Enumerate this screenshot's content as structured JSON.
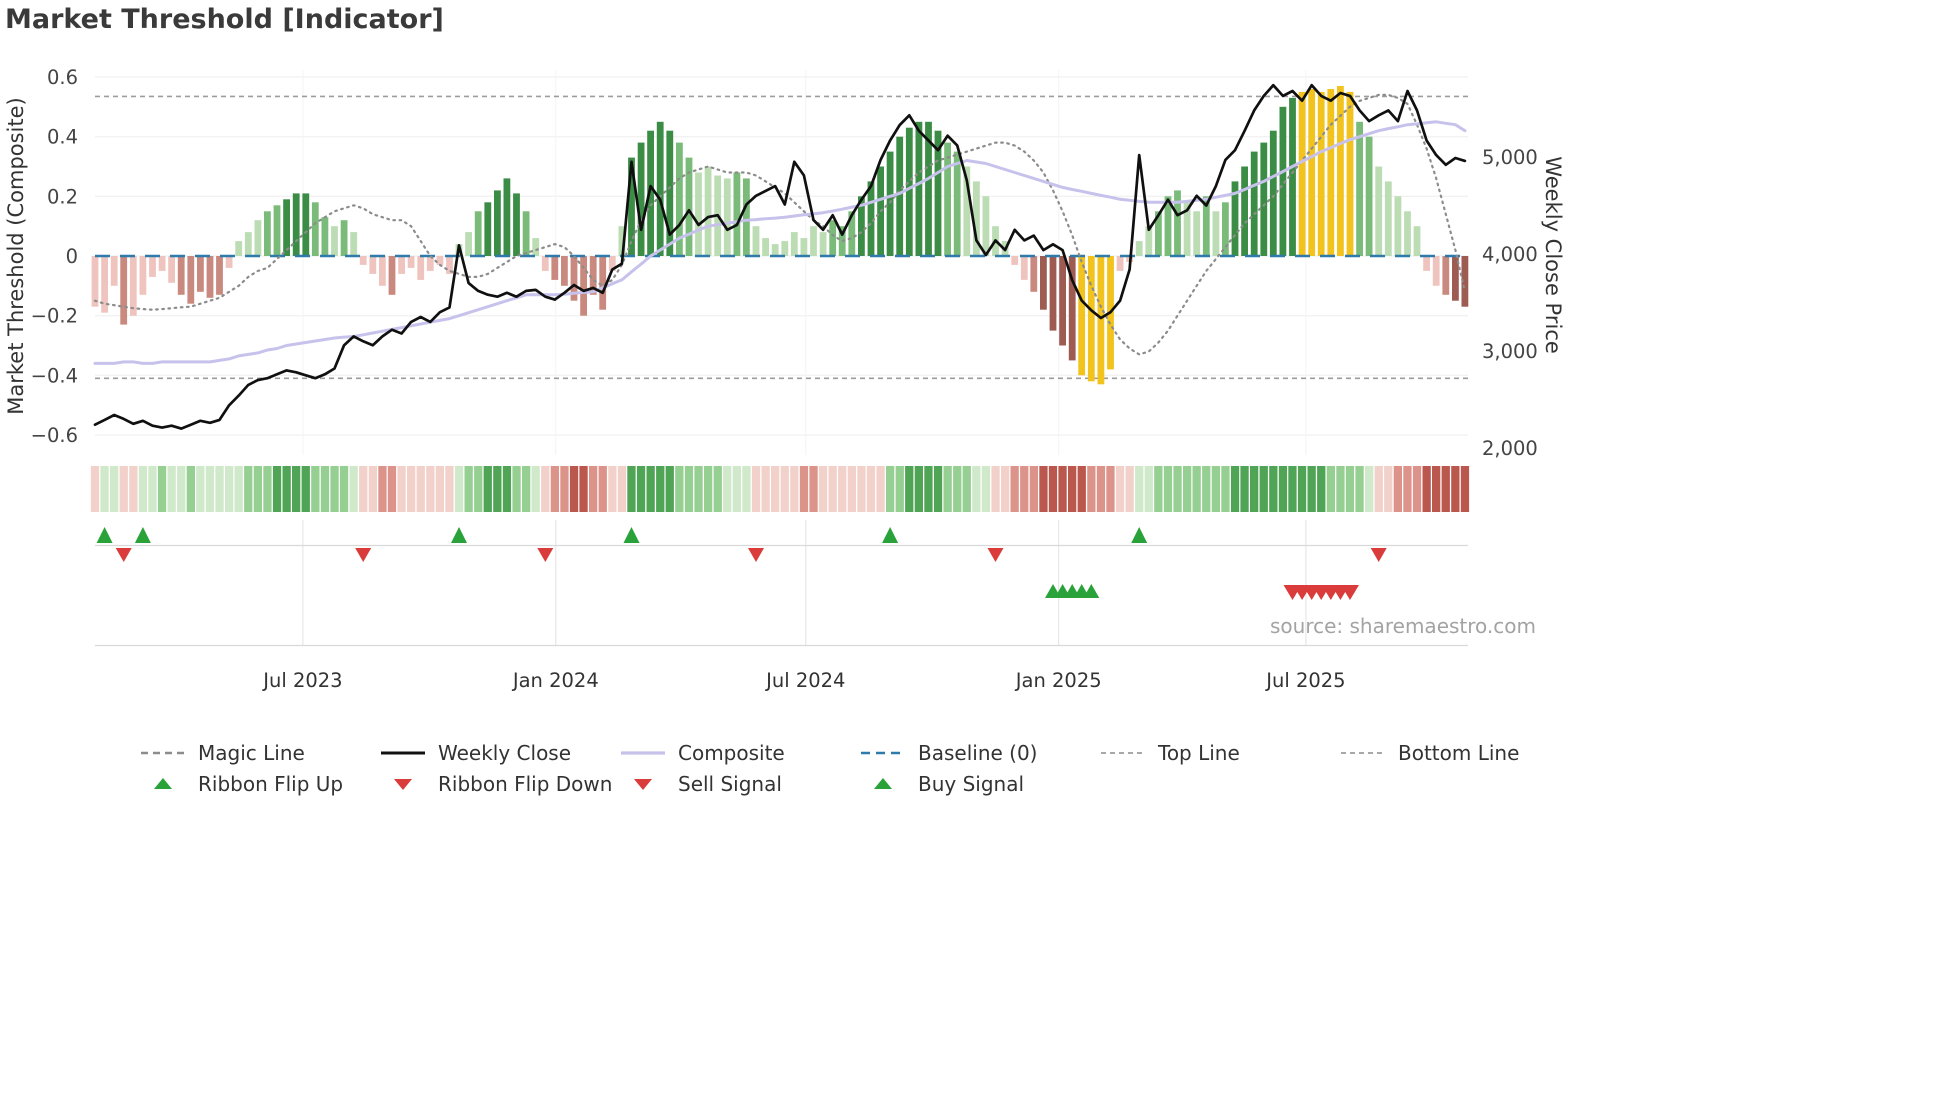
{
  "header": {
    "title": "Market Threshold [Indicator]"
  },
  "source_text": "source: sharemaestro.com",
  "legend": {
    "row1": [
      {
        "label": "Magic Line",
        "marker": "dashed-gray"
      },
      {
        "label": "Weekly Close",
        "marker": "solid-black"
      },
      {
        "label": "Composite",
        "marker": "solid-lavender"
      },
      {
        "label": "Baseline (0)",
        "marker": "dashed-blue"
      },
      {
        "label": "Top Line",
        "marker": "dashed-gray-thin"
      },
      {
        "label": "Bottom Line",
        "marker": "dashed-gray-thin"
      }
    ],
    "row2": [
      {
        "label": "Ribbon Flip Up",
        "marker": "triangle-up-green"
      },
      {
        "label": "Ribbon Flip Down",
        "marker": "triangle-down-red"
      },
      {
        "label": "Sell Signal",
        "marker": "triangle-down-red"
      },
      {
        "label": "Buy Signal",
        "marker": "triangle-up-green"
      }
    ]
  },
  "chart_data": {
    "type": "bar+line",
    "title": "Market Threshold [Indicator]",
    "x_unit": "week",
    "left_axis": {
      "title": "Market Threshold (Composite)",
      "range": [
        -0.6,
        0.6
      ],
      "ticks": [
        {
          "label": "0.6",
          "value": 0.6
        },
        {
          "label": "0.4",
          "value": 0.4
        },
        {
          "label": "0.2",
          "value": 0.2
        },
        {
          "label": "0",
          "value": 0
        },
        {
          "label": "−0.2",
          "value": -0.2
        },
        {
          "label": "−0.4",
          "value": -0.4
        },
        {
          "label": "−0.6",
          "value": -0.6
        }
      ]
    },
    "right_axis": {
      "title": "Weekly Close Price",
      "range": [
        2000,
        5800
      ],
      "ticks": [
        {
          "label": "5,000",
          "value": 5000
        },
        {
          "label": "4,000",
          "value": 4000
        },
        {
          "label": "3,000",
          "value": 3000
        },
        {
          "label": "2,000",
          "value": 2000
        }
      ]
    },
    "x_axis": {
      "ticks": [
        {
          "label": "Jul 2023",
          "week": 21.7
        },
        {
          "label": "Jan 2024",
          "week": 48.1
        },
        {
          "label": "Jul 2024",
          "week": 74.2
        },
        {
          "label": "Jan 2025",
          "week": 100.6
        },
        {
          "label": "Jul 2025",
          "week": 126.4
        }
      ]
    },
    "reference_lines": {
      "baseline": 0,
      "top_line": 0.535,
      "bottom_line": -0.41
    },
    "bar_colors": {
      "g1": "#bcdcb4",
      "g2": "#7abb79",
      "g3": "#3b8c45",
      "r1": "#efc4be",
      "r2": "#c9897f",
      "r3": "#9d5b52",
      "gold": "#f2c21d"
    },
    "line_colors": {
      "weekly_close": "#101010",
      "composite": "#c6c2ec",
      "magic": "#8c8c8c",
      "baseline": "#2e7bab",
      "bands": "#9c9c9c"
    },
    "signal_colors": {
      "up": "#2aa23a",
      "down": "#da3b3b"
    },
    "ribbon_colors": {
      "1": "#cfe9ca",
      "2": "#96cf92",
      "3": "#50a455",
      "-1": "#f3d1cb",
      "-2": "#dc938a",
      "-3": "#bb584e"
    },
    "bars": [
      [
        -0.17,
        "r1"
      ],
      [
        -0.19,
        "r1"
      ],
      [
        -0.1,
        "r1"
      ],
      [
        -0.23,
        "r2"
      ],
      [
        -0.2,
        "r1"
      ],
      [
        -0.13,
        "r1"
      ],
      [
        -0.07,
        "r1"
      ],
      [
        -0.05,
        "r1"
      ],
      [
        -0.09,
        "r1"
      ],
      [
        -0.13,
        "r2"
      ],
      [
        -0.16,
        "r2"
      ],
      [
        -0.12,
        "r2"
      ],
      [
        -0.14,
        "r2"
      ],
      [
        -0.13,
        "r2"
      ],
      [
        -0.04,
        "r1"
      ],
      [
        0.05,
        "g1"
      ],
      [
        0.08,
        "g1"
      ],
      [
        0.12,
        "g1"
      ],
      [
        0.15,
        "g2"
      ],
      [
        0.17,
        "g2"
      ],
      [
        0.19,
        "g3"
      ],
      [
        0.21,
        "g3"
      ],
      [
        0.21,
        "g3"
      ],
      [
        0.18,
        "g2"
      ],
      [
        0.13,
        "g2"
      ],
      [
        0.1,
        "g1"
      ],
      [
        0.12,
        "g2"
      ],
      [
        0.08,
        "g1"
      ],
      [
        -0.03,
        "r1"
      ],
      [
        -0.06,
        "r1"
      ],
      [
        -0.1,
        "r1"
      ],
      [
        -0.13,
        "r2"
      ],
      [
        -0.06,
        "r1"
      ],
      [
        -0.04,
        "r1"
      ],
      [
        -0.08,
        "r1"
      ],
      [
        -0.05,
        "r1"
      ],
      [
        -0.03,
        "r1"
      ],
      [
        -0.06,
        "r1"
      ],
      [
        0.04,
        "g1"
      ],
      [
        0.08,
        "g1"
      ],
      [
        0.15,
        "g2"
      ],
      [
        0.18,
        "g3"
      ],
      [
        0.22,
        "g3"
      ],
      [
        0.26,
        "g3"
      ],
      [
        0.21,
        "g3"
      ],
      [
        0.15,
        "g2"
      ],
      [
        0.06,
        "g1"
      ],
      [
        -0.05,
        "r1"
      ],
      [
        -0.08,
        "r2"
      ],
      [
        -0.1,
        "r2"
      ],
      [
        -0.15,
        "r2"
      ],
      [
        -0.2,
        "r2"
      ],
      [
        -0.13,
        "r2"
      ],
      [
        -0.18,
        "r2"
      ],
      [
        -0.05,
        "r1"
      ],
      [
        0.1,
        "g1"
      ],
      [
        0.33,
        "g3"
      ],
      [
        0.38,
        "g3"
      ],
      [
        0.42,
        "g3"
      ],
      [
        0.45,
        "g3"
      ],
      [
        0.42,
        "g3"
      ],
      [
        0.38,
        "g2"
      ],
      [
        0.33,
        "g2"
      ],
      [
        0.28,
        "g1"
      ],
      [
        0.3,
        "g1"
      ],
      [
        0.27,
        "g1"
      ],
      [
        0.26,
        "g1"
      ],
      [
        0.28,
        "g2"
      ],
      [
        0.26,
        "g2"
      ],
      [
        0.1,
        "g1"
      ],
      [
        0.06,
        "g1"
      ],
      [
        0.04,
        "g1"
      ],
      [
        0.05,
        "g1"
      ],
      [
        0.08,
        "g1"
      ],
      [
        0.06,
        "g1"
      ],
      [
        0.1,
        "g1"
      ],
      [
        0.08,
        "g1"
      ],
      [
        0.12,
        "g2"
      ],
      [
        0.1,
        "g2"
      ],
      [
        0.15,
        "g2"
      ],
      [
        0.2,
        "g3"
      ],
      [
        0.25,
        "g3"
      ],
      [
        0.3,
        "g3"
      ],
      [
        0.35,
        "g3"
      ],
      [
        0.4,
        "g3"
      ],
      [
        0.43,
        "g3"
      ],
      [
        0.45,
        "g3"
      ],
      [
        0.45,
        "g3"
      ],
      [
        0.42,
        "g3"
      ],
      [
        0.38,
        "g2"
      ],
      [
        0.35,
        "g2"
      ],
      [
        0.3,
        "g1"
      ],
      [
        0.25,
        "g1"
      ],
      [
        0.2,
        "g1"
      ],
      [
        0.1,
        "g1"
      ],
      [
        0.05,
        "g1"
      ],
      [
        -0.03,
        "r1"
      ],
      [
        -0.08,
        "r1"
      ],
      [
        -0.12,
        "r2"
      ],
      [
        -0.18,
        "r3"
      ],
      [
        -0.25,
        "r3"
      ],
      [
        -0.3,
        "r3"
      ],
      [
        -0.35,
        "r3"
      ],
      [
        -0.4,
        "gold"
      ],
      [
        -0.42,
        "gold"
      ],
      [
        -0.43,
        "gold"
      ],
      [
        -0.38,
        "gold"
      ],
      [
        -0.05,
        "r1"
      ],
      [
        -0.02,
        "r1"
      ],
      [
        0.05,
        "g1"
      ],
      [
        0.1,
        "g1"
      ],
      [
        0.15,
        "g2"
      ],
      [
        0.2,
        "g2"
      ],
      [
        0.22,
        "g2"
      ],
      [
        0.18,
        "g1"
      ],
      [
        0.15,
        "g1"
      ],
      [
        0.2,
        "g2"
      ],
      [
        0.15,
        "g1"
      ],
      [
        0.18,
        "g2"
      ],
      [
        0.25,
        "g3"
      ],
      [
        0.3,
        "g3"
      ],
      [
        0.35,
        "g3"
      ],
      [
        0.38,
        "g3"
      ],
      [
        0.42,
        "g3"
      ],
      [
        0.5,
        "g3"
      ],
      [
        0.53,
        "g3"
      ],
      [
        0.55,
        "gold"
      ],
      [
        0.56,
        "gold"
      ],
      [
        0.55,
        "gold"
      ],
      [
        0.56,
        "gold"
      ],
      [
        0.57,
        "gold"
      ],
      [
        0.55,
        "gold"
      ],
      [
        0.45,
        "g2"
      ],
      [
        0.4,
        "g2"
      ],
      [
        0.3,
        "g1"
      ],
      [
        0.25,
        "g1"
      ],
      [
        0.2,
        "g1"
      ],
      [
        0.15,
        "g1"
      ],
      [
        0.1,
        "g1"
      ],
      [
        -0.05,
        "r1"
      ],
      [
        -0.1,
        "r1"
      ],
      [
        -0.13,
        "r2"
      ],
      [
        -0.15,
        "r3"
      ],
      [
        -0.17,
        "r3"
      ]
    ],
    "lines": {
      "weekly_close": {
        "label": "Weekly Close",
        "axis": "right",
        "values": [
          2240,
          2290,
          2340,
          2300,
          2250,
          2280,
          2230,
          2210,
          2230,
          2200,
          2240,
          2280,
          2260,
          2290,
          2440,
          2540,
          2650,
          2700,
          2720,
          2760,
          2800,
          2780,
          2750,
          2720,
          2760,
          2820,
          3060,
          3150,
          3100,
          3060,
          3150,
          3220,
          3180,
          3300,
          3350,
          3300,
          3400,
          3450,
          4090,
          3700,
          3620,
          3580,
          3560,
          3600,
          3560,
          3620,
          3630,
          3560,
          3530,
          3600,
          3680,
          3620,
          3650,
          3600,
          3840,
          3900,
          4950,
          4250,
          4700,
          4560,
          4200,
          4300,
          4450,
          4300,
          4380,
          4400,
          4250,
          4300,
          4510,
          4600,
          4650,
          4700,
          4510,
          4950,
          4810,
          4350,
          4250,
          4400,
          4200,
          4400,
          4560,
          4700,
          4970,
          5170,
          5330,
          5430,
          5270,
          5170,
          5070,
          5220,
          5120,
          4760,
          4140,
          3990,
          4140,
          4040,
          4250,
          4140,
          4190,
          4040,
          4100,
          4040,
          3730,
          3520,
          3420,
          3340,
          3400,
          3520,
          3840,
          5020,
          4250,
          4400,
          4560,
          4400,
          4450,
          4600,
          4500,
          4700,
          4970,
          5070,
          5270,
          5480,
          5630,
          5740,
          5630,
          5680,
          5580,
          5740,
          5630,
          5580,
          5660,
          5630,
          5480,
          5370,
          5430,
          5480,
          5370,
          5680,
          5480,
          5170,
          5020,
          4920,
          4990,
          4960
        ]
      },
      "composite": {
        "label": "Composite",
        "axis": "left",
        "values": [
          -0.36,
          -0.36,
          -0.36,
          -0.355,
          -0.355,
          -0.36,
          -0.36,
          -0.355,
          -0.355,
          -0.355,
          -0.355,
          -0.355,
          -0.355,
          -0.35,
          -0.345,
          -0.335,
          -0.33,
          -0.325,
          -0.315,
          -0.31,
          -0.3,
          -0.295,
          -0.29,
          -0.285,
          -0.28,
          -0.275,
          -0.272,
          -0.27,
          -0.264,
          -0.258,
          -0.252,
          -0.246,
          -0.24,
          -0.234,
          -0.228,
          -0.222,
          -0.216,
          -0.21,
          -0.2,
          -0.19,
          -0.18,
          -0.17,
          -0.16,
          -0.15,
          -0.14,
          -0.13,
          -0.13,
          -0.13,
          -0.13,
          -0.128,
          -0.125,
          -0.122,
          -0.12,
          -0.107,
          -0.093,
          -0.08,
          -0.053,
          -0.027,
          0.0,
          0.02,
          0.04,
          0.06,
          0.073,
          0.087,
          0.1,
          0.105,
          0.11,
          0.115,
          0.12,
          0.122,
          0.125,
          0.127,
          0.13,
          0.134,
          0.138,
          0.141,
          0.145,
          0.151,
          0.157,
          0.164,
          0.17,
          0.18,
          0.19,
          0.2,
          0.21,
          0.227,
          0.243,
          0.26,
          0.28,
          0.3,
          0.31,
          0.32,
          0.315,
          0.31,
          0.3,
          0.29,
          0.28,
          0.27,
          0.26,
          0.25,
          0.24,
          0.23,
          0.223,
          0.217,
          0.21,
          0.203,
          0.197,
          0.19,
          0.187,
          0.183,
          0.18,
          0.18,
          0.18,
          0.18,
          0.183,
          0.187,
          0.19,
          0.197,
          0.203,
          0.21,
          0.223,
          0.237,
          0.25,
          0.267,
          0.283,
          0.3,
          0.317,
          0.333,
          0.35,
          0.363,
          0.377,
          0.39,
          0.4,
          0.41,
          0.42,
          0.427,
          0.433,
          0.44,
          0.443,
          0.447,
          0.45,
          0.445,
          0.44,
          0.42
        ]
      },
      "magic": {
        "label": "Magic Line",
        "axis": "left",
        "values": [
          -0.15,
          -0.16,
          -0.165,
          -0.17,
          -0.175,
          -0.178,
          -0.18,
          -0.178,
          -0.175,
          -0.172,
          -0.17,
          -0.16,
          -0.15,
          -0.14,
          -0.12,
          -0.1,
          -0.07,
          -0.05,
          -0.04,
          -0.01,
          0.02,
          0.05,
          0.08,
          0.11,
          0.13,
          0.15,
          0.16,
          0.17,
          0.16,
          0.14,
          0.13,
          0.12,
          0.12,
          0.1,
          0.05,
          0.0,
          -0.03,
          -0.05,
          -0.06,
          -0.07,
          -0.07,
          -0.06,
          -0.04,
          -0.02,
          0.0,
          0.01,
          0.02,
          0.03,
          0.04,
          0.03,
          0.0,
          -0.04,
          -0.08,
          -0.1,
          -0.08,
          -0.03,
          0.05,
          0.12,
          0.17,
          0.2,
          0.23,
          0.26,
          0.28,
          0.29,
          0.3,
          0.29,
          0.28,
          0.28,
          0.28,
          0.27,
          0.25,
          0.23,
          0.21,
          0.18,
          0.15,
          0.12,
          0.1,
          0.07,
          0.05,
          0.06,
          0.08,
          0.11,
          0.15,
          0.18,
          0.22,
          0.25,
          0.28,
          0.3,
          0.32,
          0.33,
          0.34,
          0.35,
          0.36,
          0.37,
          0.38,
          0.38,
          0.37,
          0.35,
          0.32,
          0.28,
          0.22,
          0.15,
          0.07,
          -0.02,
          -0.1,
          -0.17,
          -0.23,
          -0.28,
          -0.31,
          -0.33,
          -0.32,
          -0.29,
          -0.25,
          -0.2,
          -0.15,
          -0.1,
          -0.05,
          -0.01,
          0.03,
          0.07,
          0.11,
          0.14,
          0.17,
          0.2,
          0.24,
          0.28,
          0.32,
          0.36,
          0.4,
          0.44,
          0.47,
          0.5,
          0.52,
          0.53,
          0.54,
          0.54,
          0.53,
          0.51,
          0.44,
          0.36,
          0.26,
          0.14,
          0.02,
          -0.12
        ]
      }
    },
    "ribbon": [
      -1,
      1,
      1,
      -1,
      -1,
      1,
      1,
      2,
      1,
      1,
      2,
      1,
      1,
      1,
      1,
      1,
      2,
      2,
      2,
      3,
      3,
      3,
      3,
      2,
      2,
      2,
      2,
      1,
      -1,
      -1,
      -2,
      -2,
      -1,
      -1,
      -1,
      -1,
      -1,
      -1,
      1,
      2,
      2,
      3,
      3,
      3,
      2,
      2,
      1,
      -1,
      -2,
      -2,
      -3,
      -3,
      -2,
      -2,
      -1,
      -1,
      3,
      3,
      3,
      3,
      3,
      2,
      2,
      2,
      2,
      2,
      1,
      1,
      1,
      -1,
      -1,
      -1,
      -1,
      -1,
      -2,
      -2,
      -1,
      -1,
      -1,
      -1,
      -1,
      -1,
      -1,
      2,
      2,
      3,
      3,
      3,
      3,
      2,
      2,
      2,
      1,
      1,
      -1,
      -1,
      -2,
      -2,
      -2,
      -3,
      -3,
      -3,
      -3,
      -3,
      -2,
      -2,
      -2,
      -1,
      -1,
      1,
      1,
      2,
      2,
      2,
      2,
      2,
      2,
      2,
      2,
      3,
      3,
      3,
      3,
      3,
      3,
      3,
      3,
      3,
      3,
      2,
      2,
      2,
      2,
      1,
      -1,
      -1,
      -2,
      -2,
      -2,
      -3,
      -3,
      -3,
      -3,
      -3
    ],
    "signals": {
      "ribbon_flip_up_weeks": [
        1,
        5,
        38,
        56,
        83,
        109
      ],
      "ribbon_flip_down_weeks": [
        3,
        28,
        47,
        69,
        94,
        134
      ],
      "buy_signal_weeks": [
        100,
        101,
        102,
        103,
        104
      ],
      "sell_signal_weeks": [
        125,
        126,
        127,
        128,
        129,
        130,
        131
      ]
    }
  }
}
